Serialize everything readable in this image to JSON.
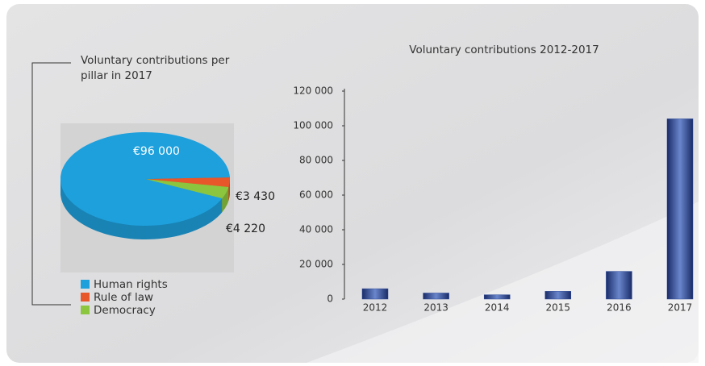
{
  "chart_data": [
    {
      "type": "pie",
      "title": "Voluntary contributions per pillar in 2017",
      "categories": [
        "Human rights",
        "Rule of law",
        "Democracy"
      ],
      "values": [
        96000,
        3430,
        4220
      ],
      "value_labels": [
        "€96 000",
        "€3 430",
        "€4 220"
      ],
      "colors": [
        "#1ea0dc",
        "#e8572a",
        "#8cc63f"
      ]
    },
    {
      "type": "bar",
      "title": "Voluntary contributions 2012-2017",
      "categories": [
        "2012",
        "2013",
        "2014",
        "2015",
        "2016",
        "2017"
      ],
      "values": [
        6000,
        3500,
        2500,
        4500,
        16000,
        104000
      ],
      "color": "#2d4a99",
      "ylim": [
        0,
        120000
      ],
      "yticks": [
        0,
        {
          "value": 20000,
          "label": "20 000"
        },
        {
          "value": 40000,
          "label": "40 000"
        },
        {
          "value": 60000,
          "label": "60 000"
        },
        {
          "value": 80000,
          "label": "80 000"
        },
        {
          "value": 100000,
          "label": "100 000"
        },
        {
          "value": 120000,
          "label": "120 000"
        }
      ]
    }
  ]
}
